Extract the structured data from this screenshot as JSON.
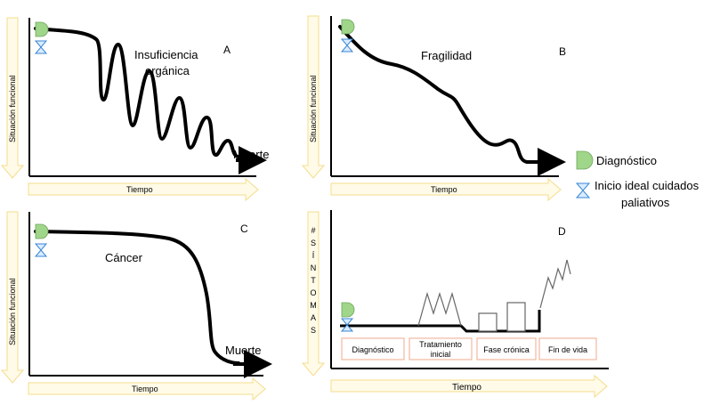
{
  "panels": {
    "a": {
      "letter": "A",
      "title_line1": "Insuficiencia",
      "title_line2": "orgánica",
      "end_label": "Muerte",
      "y_axis": "Situación funcional",
      "x_axis": "Tiempo"
    },
    "b": {
      "letter": "B",
      "title": "Fragilidad",
      "y_axis": "Situación funcional",
      "x_axis": "Tiempo"
    },
    "c": {
      "letter": "C",
      "title": "Cáncer",
      "end_label": "Muerte",
      "y_axis": "Situación funcional",
      "x_axis": "Tiempo"
    },
    "d": {
      "letter": "D",
      "y_axis_letters": [
        "#",
        "S",
        "Í",
        "N",
        "T",
        "O",
        "M",
        "A",
        "S"
      ],
      "x_axis": "Tiempo",
      "phases": [
        "Diagnóstico",
        "Tratamiento inicial",
        "Fase crónica",
        "Fin de vida"
      ],
      "phase_lines": [
        [
          "Diagnóstico"
        ],
        [
          "Tratamiento",
          "inicial"
        ],
        [
          "Fase crónica"
        ],
        [
          "Fin de vida"
        ]
      ]
    }
  },
  "legend": {
    "diagnosis": "Diagnóstico",
    "palliative_line1": "Inicio ideal cuidados",
    "palliative_line2": "paliativos"
  },
  "colors": {
    "diagnosis_icon": "#9fd68a",
    "hourglass_icon": "#3a86d4",
    "axis_arrow_fill": "#fffbe8",
    "axis_arrow_stroke": "#f5dc8c",
    "phase_border": "#f2b8a0"
  }
}
